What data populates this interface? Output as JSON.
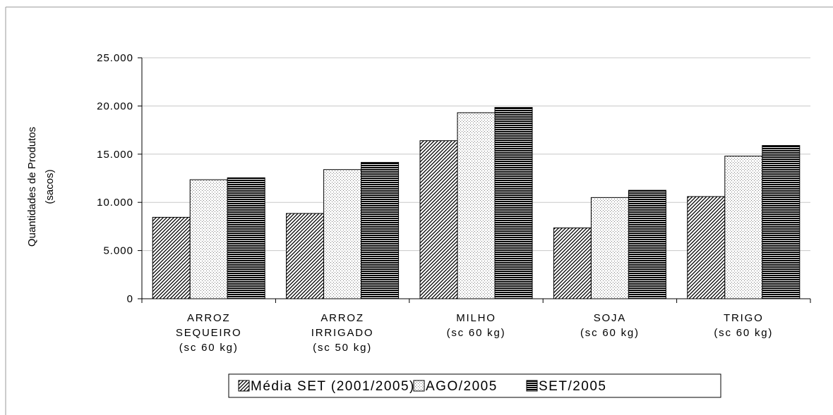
{
  "chart_data": {
    "type": "bar",
    "title": "",
    "ylabel_lines": [
      "Quantidades de Produtos",
      "(sacos)"
    ],
    "xlabel": "",
    "ylim": [
      0,
      25000
    ],
    "yticks": [
      0,
      5000,
      10000,
      15000,
      20000,
      25000
    ],
    "ytick_labels": [
      "0",
      "5.000",
      "10.000",
      "15.000",
      "20.000",
      "25.000"
    ],
    "grid": "horizontal",
    "legend_position": "bottom",
    "categories": [
      [
        "ARROZ",
        "SEQUEIRO",
        "(sc 60 kg)"
      ],
      [
        "ARROZ",
        "IRRIGADO",
        "(sc 50 kg)"
      ],
      [
        "MILHO",
        "(sc 60 kg)"
      ],
      [
        "SOJA",
        "(sc 60 kg)"
      ],
      [
        "TRIGO",
        "(sc 60 kg)"
      ]
    ],
    "series": [
      {
        "name": "Média SET (2001/2005)",
        "pattern": "diagonal-hatch",
        "values": [
          8450,
          8850,
          16400,
          7350,
          10600
        ]
      },
      {
        "name": "AGO/2005",
        "pattern": "dotted",
        "values": [
          12350,
          13400,
          19300,
          10500,
          14800
        ]
      },
      {
        "name": "SET/2005",
        "pattern": "horizontal-stripes",
        "values": [
          12550,
          14150,
          19850,
          11250,
          15900
        ]
      }
    ]
  }
}
